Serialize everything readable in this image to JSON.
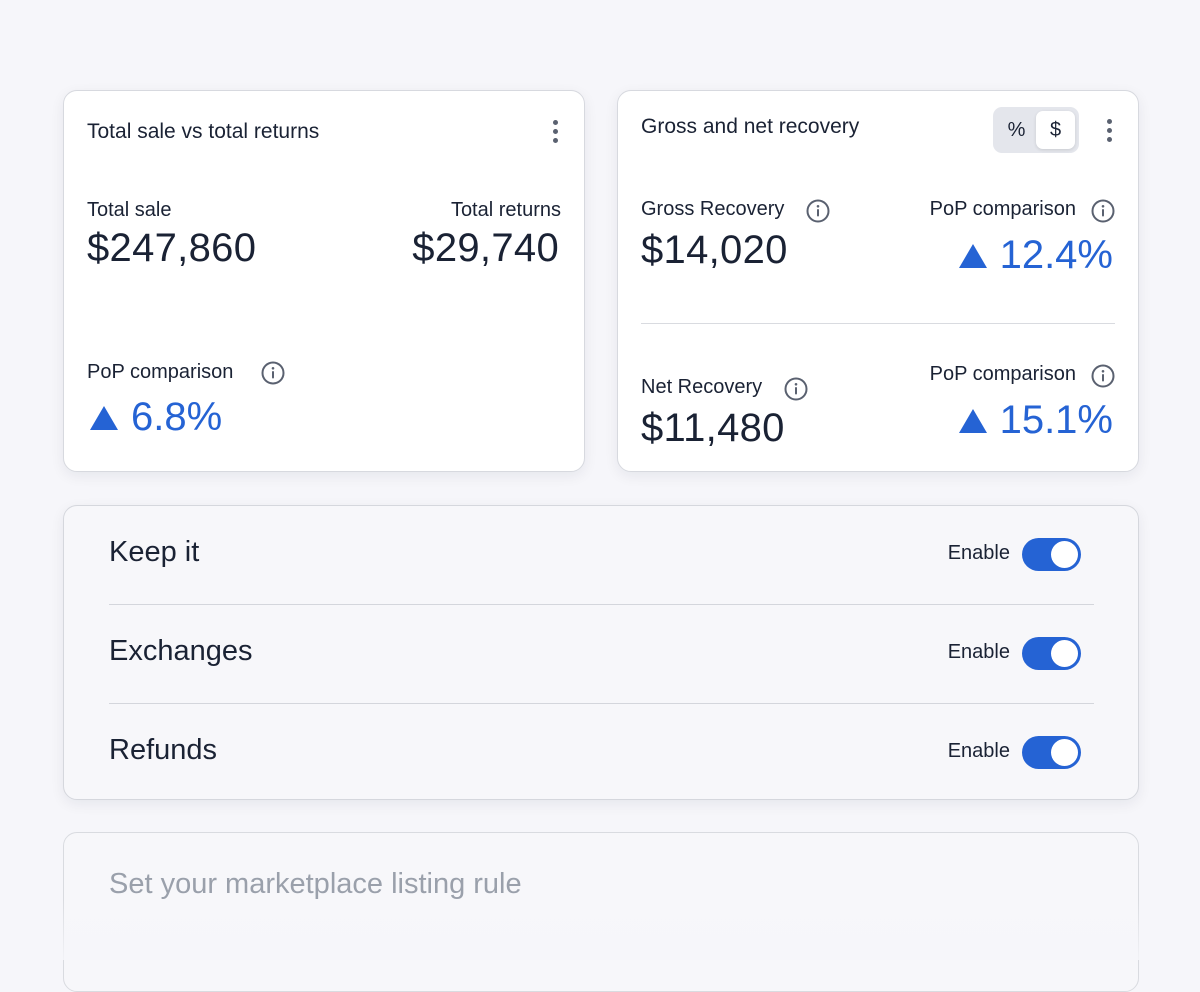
{
  "sales_card": {
    "title": "Total sale vs total returns",
    "total_sale_label": "Total sale",
    "total_sale_value": "$247,860",
    "total_returns_label": "Total returns",
    "total_returns_value": "$29,740",
    "pop_label": "PoP comparison",
    "pop_value": "6.8%"
  },
  "recovery_card": {
    "title": "Gross and net recovery",
    "toggle_options": [
      "%",
      "$"
    ],
    "toggle_selected": "$",
    "gross_label": "Gross Recovery",
    "gross_value": "$14,020",
    "gross_pop_label": "PoP comparison",
    "gross_pop_value": "12.4%",
    "net_label": "Net Recovery",
    "net_value": "$11,480",
    "net_pop_label": "PoP comparison",
    "net_pop_value": "15.1%"
  },
  "toggles": [
    {
      "label": "Keep it",
      "status_label": "Enable",
      "enabled": true
    },
    {
      "label": "Exchanges",
      "status_label": "Enable",
      "enabled": true
    },
    {
      "label": "Refunds",
      "status_label": "Enable",
      "enabled": true
    }
  ],
  "listing_rule": {
    "label": "Set your marketplace listing rule"
  },
  "colors": {
    "accent": "#2563d4",
    "text": "#1a2234",
    "muted_text": "#9aa0ab",
    "background": "#f6f6fa"
  },
  "icons": {
    "info": "info-icon",
    "more": "kebab-menu-icon",
    "trend": "triangle-up-icon"
  }
}
